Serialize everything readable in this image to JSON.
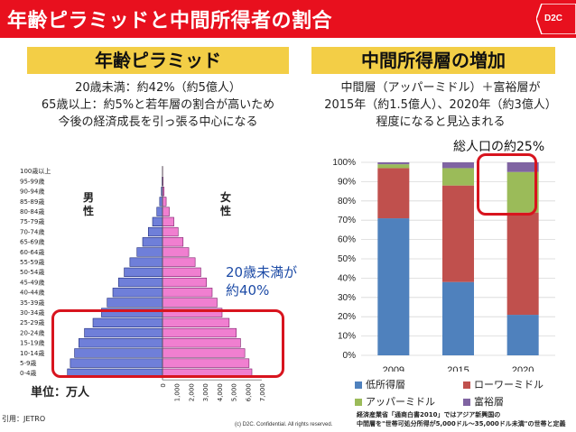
{
  "header": {
    "title": "年齢ピラミッドと中間所得者の割合",
    "badge": "D2C"
  },
  "left": {
    "heading": "年齢ピラミッド",
    "desc": [
      "20歳未満：約42%（約5億人）",
      "65歳以上：約5%と若年層の割合が高いため",
      "今後の経済成長を引っ張る中心になる"
    ],
    "male_label": "男\n性",
    "female_label": "女\n性",
    "note_line1": "20歳未満が",
    "note_line2": "約40%",
    "unit": "単位：万人",
    "source": "引用：JETRO"
  },
  "right": {
    "heading": "中間所得層の増加",
    "desc": [
      "中間層（アッパーミドル）＋富裕層が",
      "2015年（約1.5億人）、2020年（約3億人）",
      "程度になると見込まれる"
    ],
    "callout": "総人口の約25%",
    "footnote_line1": "経済産業省「通商白書2010」ではアジア新興国の",
    "footnote_line2": "中間層を\"世帯可処分所得が5,000ドル～35,000ドル未満\"の世帯と定義",
    "copyright": "(c) D2C. Confidential. All rights reserved."
  },
  "chart_data": [
    {
      "type": "bar",
      "orientation": "horizontal",
      "title": "",
      "categories": [
        "100歳以上",
        "95-99歳",
        "90-94歳",
        "85-89歳",
        "80-84歳",
        "75-79歳",
        "70-74歳",
        "65-69歳",
        "60-64歳",
        "55-59歳",
        "50-54歳",
        "45-49歳",
        "40-44歳",
        "35-39歳",
        "30-34歳",
        "25-29歳",
        "20-24歳",
        "15-19歳",
        "10-14歳",
        "5-9歳",
        "0-4歳"
      ],
      "series": [
        {
          "name": "男性",
          "color": "#6f7fd9",
          "values": [
            10,
            30,
            80,
            200,
            400,
            700,
            1000,
            1400,
            1800,
            2300,
            2700,
            3100,
            3500,
            3900,
            4300,
            4900,
            5500,
            5900,
            6200,
            6500,
            6700
          ]
        },
        {
          "name": "女性",
          "color": "#f07fd0",
          "values": [
            15,
            40,
            110,
            260,
            480,
            800,
            1100,
            1450,
            1850,
            2300,
            2700,
            3100,
            3500,
            3850,
            4200,
            4700,
            5200,
            5500,
            5800,
            6100,
            6300
          ]
        }
      ],
      "xtick_labels": [
        "0",
        "1,000",
        "2,000",
        "3,000",
        "4,000",
        "5,000",
        "6,000",
        "7,000"
      ],
      "xlim": [
        0,
        7000
      ],
      "xlabel": "単位：万人"
    },
    {
      "type": "bar",
      "stacked": true,
      "title": "総人口の約25%",
      "categories": [
        "2009",
        "2015",
        "2020"
      ],
      "series": [
        {
          "name": "低所得層",
          "color": "#4f81bd",
          "values": [
            71,
            38,
            21
          ]
        },
        {
          "name": "ローワーミドル",
          "color": "#c0504d",
          "values": [
            26,
            50,
            53
          ]
        },
        {
          "name": "アッパーミドル",
          "color": "#9bbb59",
          "values": [
            2,
            9,
            21
          ]
        },
        {
          "name": "富裕層",
          "color": "#8064a2",
          "values": [
            1,
            3,
            5
          ]
        }
      ],
      "ylim": [
        0,
        100
      ],
      "ytick_labels": [
        "0%",
        "10%",
        "20%",
        "30%",
        "40%",
        "50%",
        "60%",
        "70%",
        "80%",
        "90%",
        "100%"
      ],
      "legend": "bottom"
    }
  ]
}
